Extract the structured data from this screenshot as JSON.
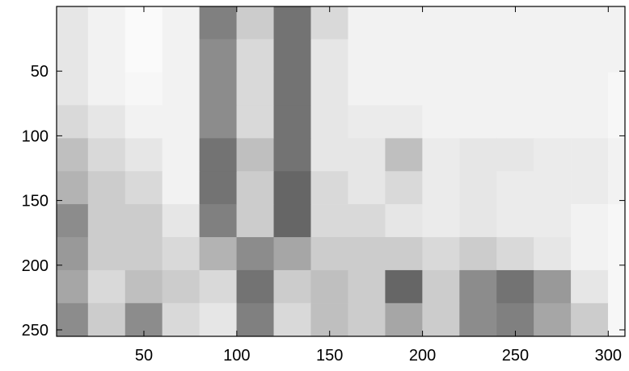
{
  "chart_data": {
    "type": "heatmap",
    "xbins": [
      0,
      20,
      40,
      60,
      80,
      100,
      120,
      140,
      160,
      180,
      200,
      220,
      240,
      260,
      280,
      300,
      320
    ],
    "ybins": [
      0,
      25.5,
      51,
      76.5,
      102,
      127.5,
      153,
      178.5,
      204,
      229.5,
      255
    ],
    "values": [
      [
        0.1,
        0.05,
        0.02,
        0.05,
        0.5,
        0.2,
        0.55,
        0.15,
        0.05,
        0.05,
        0.05,
        0.05,
        0.05,
        0.05,
        0.05,
        0.05
      ],
      [
        0.1,
        0.05,
        0.02,
        0.05,
        0.45,
        0.15,
        0.55,
        0.1,
        0.05,
        0.05,
        0.05,
        0.05,
        0.05,
        0.05,
        0.05,
        0.05
      ],
      [
        0.1,
        0.05,
        0.03,
        0.05,
        0.45,
        0.15,
        0.55,
        0.1,
        0.05,
        0.05,
        0.05,
        0.05,
        0.05,
        0.05,
        0.05,
        0.03
      ],
      [
        0.15,
        0.1,
        0.05,
        0.05,
        0.45,
        0.15,
        0.55,
        0.1,
        0.08,
        0.08,
        0.05,
        0.05,
        0.05,
        0.05,
        0.05,
        0.03
      ],
      [
        0.25,
        0.15,
        0.1,
        0.05,
        0.55,
        0.25,
        0.55,
        0.1,
        0.1,
        0.25,
        0.08,
        0.1,
        0.1,
        0.08,
        0.08,
        0.05
      ],
      [
        0.3,
        0.2,
        0.15,
        0.05,
        0.55,
        0.2,
        0.6,
        0.15,
        0.1,
        0.15,
        0.08,
        0.1,
        0.08,
        0.08,
        0.08,
        0.05
      ],
      [
        0.45,
        0.2,
        0.2,
        0.1,
        0.5,
        0.2,
        0.6,
        0.15,
        0.15,
        0.1,
        0.08,
        0.1,
        0.08,
        0.08,
        0.05,
        0.03
      ],
      [
        0.4,
        0.2,
        0.2,
        0.15,
        0.3,
        0.45,
        0.35,
        0.2,
        0.2,
        0.2,
        0.15,
        0.2,
        0.15,
        0.1,
        0.05,
        0.03
      ],
      [
        0.35,
        0.15,
        0.25,
        0.2,
        0.15,
        0.55,
        0.2,
        0.25,
        0.2,
        0.6,
        0.2,
        0.45,
        0.55,
        0.4,
        0.1,
        0.03
      ],
      [
        0.45,
        0.2,
        0.45,
        0.15,
        0.1,
        0.5,
        0.15,
        0.25,
        0.2,
        0.35,
        0.2,
        0.45,
        0.5,
        0.35,
        0.2,
        0.03
      ]
    ],
    "colors": [
      "#ffffff",
      "#000000"
    ],
    "xlim": [
      3,
      309
    ],
    "ylim": [
      0,
      255
    ],
    "y_reversed": true,
    "xticks": [
      50,
      100,
      150,
      200,
      250,
      300
    ],
    "yticks": [
      50,
      100,
      150,
      200,
      250
    ]
  }
}
